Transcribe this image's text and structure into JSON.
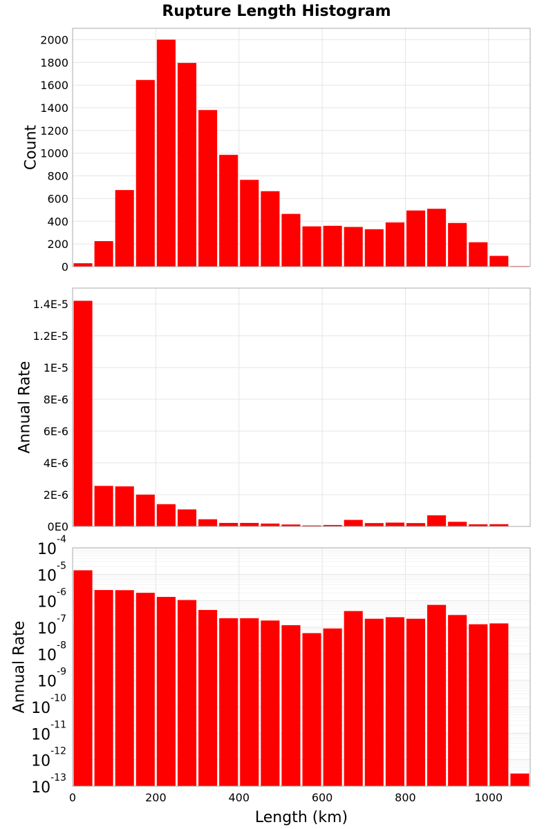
{
  "chart_data": {
    "type": "bar",
    "title": "Rupture Length Histogram",
    "xlabel": "Length (km)",
    "xlim": [
      0,
      1100
    ],
    "xticks": [
      0,
      200,
      400,
      600,
      800,
      1000
    ],
    "bin_width": 50,
    "bin_centers": [
      25,
      75,
      125,
      175,
      225,
      275,
      325,
      375,
      425,
      475,
      525,
      575,
      625,
      675,
      725,
      775,
      825,
      875,
      925,
      975,
      1025,
      1075
    ],
    "bar_color": "#ff0000",
    "grid": true,
    "panels": [
      {
        "id": "count",
        "ylabel": "Count",
        "scale": "linear",
        "ylim": [
          0,
          2100
        ],
        "yticks": [
          {
            "value": 0,
            "label": "0"
          },
          {
            "value": 200,
            "label": "200"
          },
          {
            "value": 400,
            "label": "400"
          },
          {
            "value": 600,
            "label": "600"
          },
          {
            "value": 800,
            "label": "800"
          },
          {
            "value": 1000,
            "label": "1000"
          },
          {
            "value": 1200,
            "label": "1200"
          },
          {
            "value": 1400,
            "label": "1400"
          },
          {
            "value": 1600,
            "label": "1600"
          },
          {
            "value": 1800,
            "label": "1800"
          },
          {
            "value": 2000,
            "label": "2000"
          }
        ],
        "values": [
          30,
          225,
          675,
          1645,
          2000,
          1795,
          1380,
          985,
          765,
          665,
          465,
          355,
          360,
          350,
          330,
          390,
          495,
          510,
          385,
          215,
          95,
          5
        ]
      },
      {
        "id": "rate-linear",
        "ylabel": "Annual Rate",
        "scale": "linear",
        "ylim": [
          0,
          1.5e-05
        ],
        "yticks": [
          {
            "value": 0,
            "label": "0E0"
          },
          {
            "value": 2e-06,
            "label": "2E-6"
          },
          {
            "value": 4e-06,
            "label": "4E-6"
          },
          {
            "value": 6e-06,
            "label": "6E-6"
          },
          {
            "value": 8e-06,
            "label": "8E-6"
          },
          {
            "value": 1e-05,
            "label": "1E-5"
          },
          {
            "value": 1.2e-05,
            "label": "1.2E-5"
          },
          {
            "value": 1.4e-05,
            "label": "1.4E-5"
          }
        ],
        "values": [
          1.42e-05,
          2.55e-06,
          2.52e-06,
          2e-06,
          1.4e-06,
          1.07e-06,
          4.5e-07,
          2.2e-07,
          2.2e-07,
          1.8e-07,
          1.2e-07,
          6e-08,
          9e-08,
          4.1e-07,
          2.1e-07,
          2.4e-07,
          2.1e-07,
          7e-07,
          2.9e-07,
          1.3e-07,
          1.4e-07,
          3e-13
        ]
      },
      {
        "id": "rate-log",
        "ylabel": "Annual Rate",
        "scale": "log",
        "ylim": [
          1e-13,
          0.0001
        ],
        "yticks": [
          {
            "exp": -13,
            "base": "10",
            "power": "-13"
          },
          {
            "exp": -12,
            "base": "10",
            "power": "-12"
          },
          {
            "exp": -11,
            "base": "10",
            "power": "-11"
          },
          {
            "exp": -10,
            "base": "10",
            "power": "-10"
          },
          {
            "exp": -9,
            "base": "10",
            "power": "-9"
          },
          {
            "exp": -8,
            "base": "10",
            "power": "-8"
          },
          {
            "exp": -7,
            "base": "10",
            "power": "-7"
          },
          {
            "exp": -6,
            "base": "10",
            "power": "-6"
          },
          {
            "exp": -5,
            "base": "10",
            "power": "-5"
          },
          {
            "exp": -4,
            "base": "10",
            "power": "-4"
          }
        ],
        "values": [
          1.42e-05,
          2.55e-06,
          2.52e-06,
          2e-06,
          1.4e-06,
          1.07e-06,
          4.5e-07,
          2.2e-07,
          2.2e-07,
          1.8e-07,
          1.2e-07,
          6e-08,
          9e-08,
          4.1e-07,
          2.1e-07,
          2.4e-07,
          2.1e-07,
          7e-07,
          2.9e-07,
          1.3e-07,
          1.4e-07,
          3e-13
        ]
      }
    ]
  }
}
